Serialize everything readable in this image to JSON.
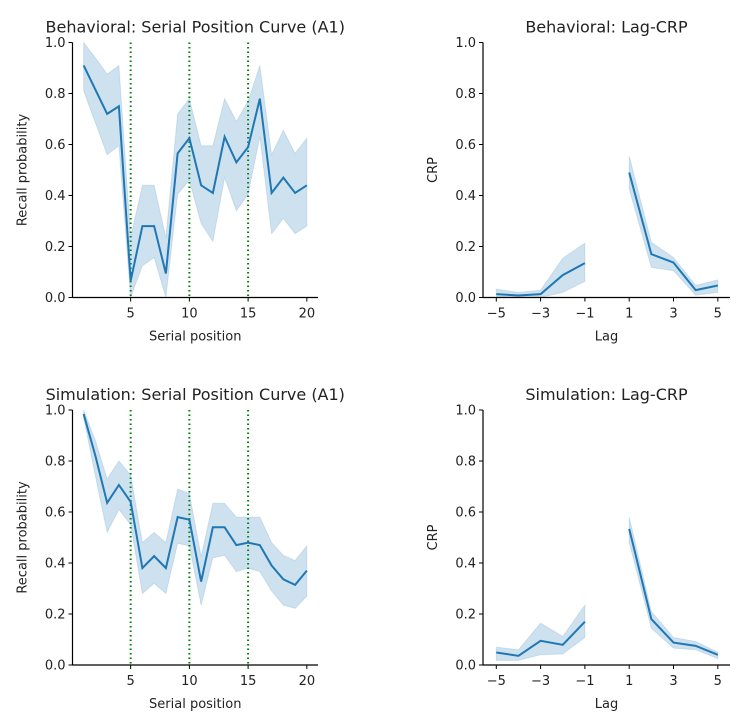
{
  "chart_data": [
    {
      "type": "line",
      "title": "Behavioral: Serial Position Curve (A1)",
      "xlabel": "Serial position",
      "ylabel": "Recall probability",
      "xlim": [
        0.05,
        20.95
      ],
      "ylim": [
        0,
        1.0
      ],
      "xticks": [
        5,
        10,
        15,
        20
      ],
      "yticks": [
        0.0,
        0.2,
        0.4,
        0.6,
        0.8,
        1.0
      ],
      "vlines": [
        5,
        10,
        15
      ],
      "vline_color": "#008000",
      "line_color": "#1f77b4",
      "x": [
        1,
        2,
        3,
        4,
        5,
        6,
        7,
        8,
        9,
        10,
        11,
        12,
        13,
        14,
        15,
        16,
        17,
        18,
        19,
        20
      ],
      "y": [
        0.91,
        0.815,
        0.72,
        0.75,
        0.065,
        0.28,
        0.28,
        0.094,
        0.565,
        0.625,
        0.44,
        0.41,
        0.63,
        0.53,
        0.59,
        0.78,
        0.41,
        0.47,
        0.41,
        0.44
      ],
      "ci_upper": [
        1.0,
        0.94,
        0.876,
        0.91,
        0.235,
        0.44,
        0.44,
        0.235,
        0.72,
        0.78,
        0.595,
        0.595,
        0.78,
        0.69,
        0.77,
        0.91,
        0.56,
        0.656,
        0.565,
        0.625
      ],
      "ci_lower": [
        0.81,
        0.685,
        0.56,
        0.595,
        0.0,
        0.124,
        0.157,
        0.0,
        0.405,
        0.46,
        0.29,
        0.22,
        0.47,
        0.34,
        0.405,
        0.63,
        0.25,
        0.31,
        0.25,
        0.28
      ]
    },
    {
      "type": "line",
      "title": "Behavioral: Lag-CRP",
      "xlabel": "Lag",
      "ylabel": "CRP",
      "xlim": [
        -5.6,
        5.55
      ],
      "ylim": [
        0,
        1.0
      ],
      "xticks": [
        -5,
        -3,
        -1,
        1,
        3,
        5
      ],
      "xtick_labels": [
        "−5",
        "−3",
        "−1",
        "1",
        "3",
        "5"
      ],
      "yticks": [
        0.0,
        0.2,
        0.4,
        0.6,
        0.8,
        1.0
      ],
      "line_color": "#1f77b4",
      "segments": [
        {
          "x": [
            -5,
            -4,
            -3,
            -2,
            -1
          ],
          "y": [
            0.013,
            0.008,
            0.013,
            0.088,
            0.135
          ],
          "ci_upper": [
            0.033,
            0.02,
            0.029,
            0.154,
            0.213
          ],
          "ci_lower": [
            0.004,
            0.0,
            0.0,
            0.02,
            0.063
          ]
        },
        {
          "x": [
            1,
            2,
            3,
            4,
            5
          ],
          "y": [
            0.49,
            0.17,
            0.137,
            0.029,
            0.047
          ],
          "ci_upper": [
            0.555,
            0.216,
            0.157,
            0.048,
            0.069
          ],
          "ci_lower": [
            0.425,
            0.118,
            0.105,
            0.009,
            0.02
          ]
        }
      ]
    },
    {
      "type": "line",
      "title": "Simulation: Serial Position Curve (A1)",
      "xlabel": "Serial position",
      "ylabel": "Recall probability",
      "xlim": [
        0.05,
        20.95
      ],
      "ylim": [
        0,
        1.0
      ],
      "xticks": [
        5,
        10,
        15,
        20
      ],
      "yticks": [
        0.0,
        0.2,
        0.4,
        0.6,
        0.8,
        1.0
      ],
      "vlines": [
        5,
        10,
        15
      ],
      "vline_color": "#008000",
      "line_color": "#1f77b4",
      "x": [
        1,
        2,
        3,
        4,
        5,
        6,
        7,
        8,
        9,
        10,
        11,
        12,
        13,
        14,
        15,
        16,
        17,
        18,
        19,
        20
      ],
      "y": [
        0.984,
        0.82,
        0.636,
        0.706,
        0.64,
        0.38,
        0.427,
        0.38,
        0.58,
        0.57,
        0.327,
        0.54,
        0.54,
        0.47,
        0.48,
        0.47,
        0.39,
        0.336,
        0.314,
        0.37
      ],
      "ci_upper": [
        1.0,
        0.88,
        0.73,
        0.8,
        0.745,
        0.48,
        0.52,
        0.48,
        0.69,
        0.673,
        0.425,
        0.634,
        0.634,
        0.58,
        0.58,
        0.58,
        0.48,
        0.43,
        0.41,
        0.467
      ],
      "ci_lower": [
        0.97,
        0.74,
        0.52,
        0.61,
        0.55,
        0.28,
        0.32,
        0.28,
        0.477,
        0.467,
        0.235,
        0.42,
        0.43,
        0.366,
        0.38,
        0.366,
        0.29,
        0.235,
        0.222,
        0.27
      ]
    },
    {
      "type": "line",
      "title": "Simulation: Lag-CRP",
      "xlabel": "Lag",
      "ylabel": "CRP",
      "xlim": [
        -5.6,
        5.55
      ],
      "ylim": [
        0,
        1.0
      ],
      "xticks": [
        -5,
        -3,
        -1,
        1,
        3,
        5
      ],
      "xtick_labels": [
        "−5",
        "−3",
        "−1",
        "1",
        "3",
        "5"
      ],
      "yticks": [
        0.0,
        0.2,
        0.4,
        0.6,
        0.8,
        1.0
      ],
      "line_color": "#1f77b4",
      "segments": [
        {
          "x": [
            -5,
            -4,
            -3,
            -2,
            -1
          ],
          "y": [
            0.049,
            0.036,
            0.095,
            0.079,
            0.17
          ],
          "ci_upper": [
            0.07,
            0.06,
            0.164,
            0.112,
            0.235
          ],
          "ci_lower": [
            0.018,
            0.018,
            0.04,
            0.043,
            0.108
          ]
        },
        {
          "x": [
            1,
            2,
            3,
            4,
            5
          ],
          "y": [
            0.534,
            0.18,
            0.088,
            0.075,
            0.04
          ],
          "ci_upper": [
            0.58,
            0.21,
            0.108,
            0.092,
            0.05
          ],
          "ci_lower": [
            0.48,
            0.144,
            0.066,
            0.06,
            0.025
          ]
        }
      ]
    }
  ]
}
